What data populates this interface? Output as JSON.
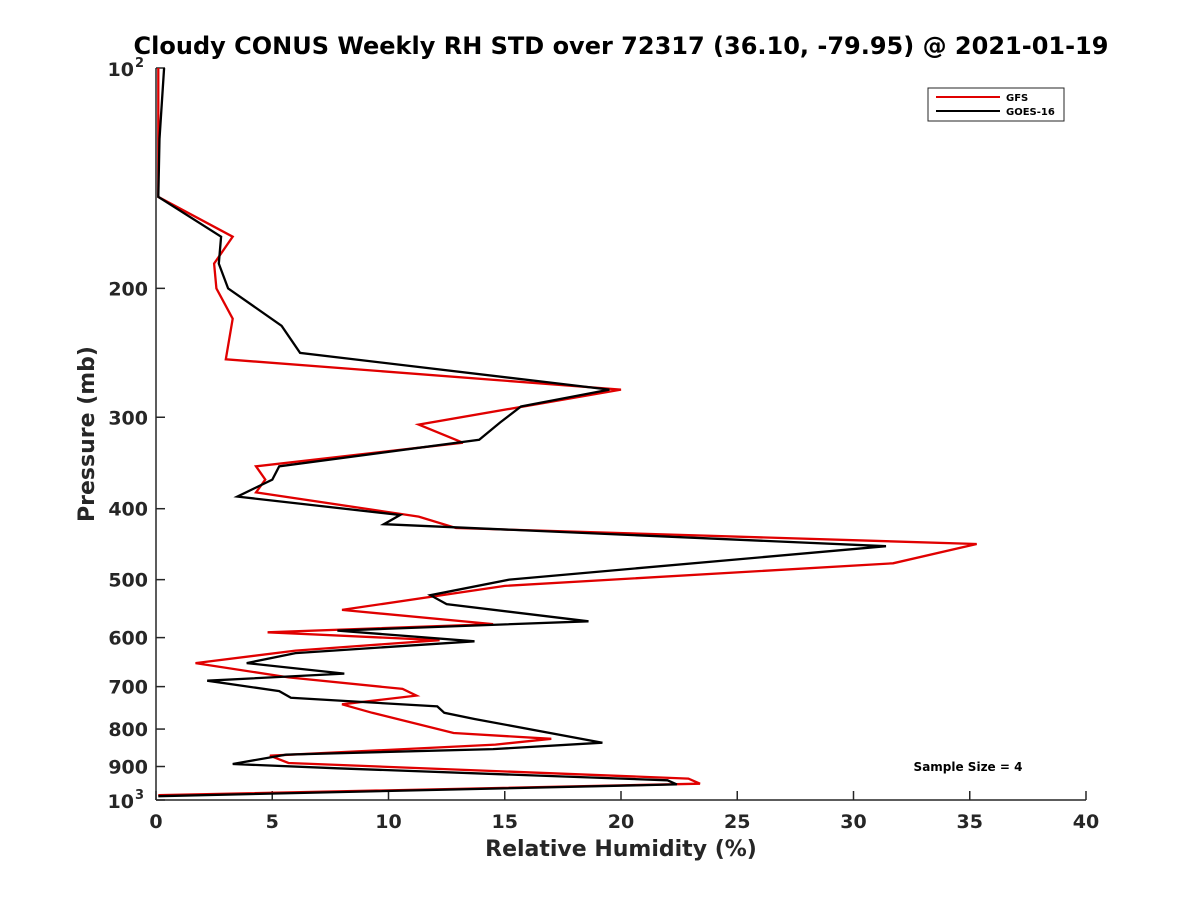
{
  "chart_data": {
    "type": "line",
    "title": "Cloudy CONUS Weekly RH STD over 72317 (36.10, -79.95) @ 2021-01-19",
    "xlabel": "Relative Humidity (%)",
    "ylabel": "Pressure (mb)",
    "xlim": [
      0,
      40
    ],
    "ylim": [
      100,
      1000
    ],
    "y_scale": "log",
    "y_reversed": true,
    "xticks": [
      0,
      5,
      10,
      15,
      20,
      25,
      30,
      35,
      40
    ],
    "yticks": [
      {
        "value": 100,
        "base": "10",
        "exp": "2"
      },
      {
        "value": 200,
        "label": "200"
      },
      {
        "value": 300,
        "label": "300"
      },
      {
        "value": 400,
        "label": "400"
      },
      {
        "value": 500,
        "label": "500"
      },
      {
        "value": 600,
        "label": "600"
      },
      {
        "value": 700,
        "label": "700"
      },
      {
        "value": 800,
        "label": "800"
      },
      {
        "value": 900,
        "label": "900"
      },
      {
        "value": 1000,
        "base": "10",
        "exp": "3"
      }
    ],
    "legend_position": "top-right",
    "annotation": "Sample Size = 4",
    "series": [
      {
        "name": "GFS",
        "color": "#e00000",
        "points": [
          [
            0.1,
            100
          ],
          [
            0.1,
            125
          ],
          [
            0.1,
            150
          ],
          [
            3.3,
            170
          ],
          [
            2.5,
            185
          ],
          [
            2.6,
            200
          ],
          [
            3.3,
            220
          ],
          [
            3.0,
            250
          ],
          [
            20.0,
            275
          ],
          [
            11.3,
            307
          ],
          [
            13.2,
            325
          ],
          [
            4.3,
            350
          ],
          [
            4.7,
            365
          ],
          [
            4.3,
            380
          ],
          [
            11.3,
            410
          ],
          [
            12.9,
            425
          ],
          [
            35.3,
            447
          ],
          [
            31.7,
            475
          ],
          [
            15.0,
            510
          ],
          [
            8.0,
            550
          ],
          [
            14.5,
            575
          ],
          [
            4.8,
            590
          ],
          [
            12.2,
            605
          ],
          [
            9.0,
            615
          ],
          [
            6.0,
            625
          ],
          [
            1.7,
            650
          ],
          [
            5.7,
            680
          ],
          [
            10.6,
            705
          ],
          [
            11.2,
            720
          ],
          [
            8.0,
            740
          ],
          [
            9.3,
            760
          ],
          [
            12.8,
            810
          ],
          [
            17.0,
            825
          ],
          [
            14.6,
            840
          ],
          [
            4.9,
            870
          ],
          [
            5.7,
            890
          ],
          [
            22.9,
            935
          ],
          [
            23.4,
            950
          ],
          [
            0.1,
            985
          ]
        ]
      },
      {
        "name": "GOES-16",
        "color": "#000000",
        "points": [
          [
            0.35,
            100
          ],
          [
            0.15,
            125
          ],
          [
            0.1,
            150
          ],
          [
            2.8,
            170
          ],
          [
            2.7,
            185
          ],
          [
            3.1,
            200
          ],
          [
            5.4,
            225
          ],
          [
            6.2,
            245
          ],
          [
            19.5,
            275
          ],
          [
            15.7,
            290
          ],
          [
            14.8,
            305
          ],
          [
            13.9,
            322
          ],
          [
            5.3,
            350
          ],
          [
            5.0,
            365
          ],
          [
            3.5,
            385
          ],
          [
            10.5,
            408
          ],
          [
            9.8,
            420
          ],
          [
            31.4,
            450
          ],
          [
            15.2,
            500
          ],
          [
            11.8,
            525
          ],
          [
            12.5,
            540
          ],
          [
            18.6,
            570
          ],
          [
            7.8,
            587
          ],
          [
            13.7,
            607
          ],
          [
            6.0,
            630
          ],
          [
            3.9,
            650
          ],
          [
            8.1,
            672
          ],
          [
            2.2,
            687
          ],
          [
            5.3,
            710
          ],
          [
            5.8,
            725
          ],
          [
            12.1,
            745
          ],
          [
            12.4,
            760
          ],
          [
            13.7,
            775
          ],
          [
            19.2,
            835
          ],
          [
            14.5,
            852
          ],
          [
            5.6,
            867
          ],
          [
            3.3,
            893
          ],
          [
            7.8,
            905
          ],
          [
            22.0,
            940
          ],
          [
            22.4,
            952
          ],
          [
            0.1,
            988
          ]
        ]
      }
    ]
  }
}
